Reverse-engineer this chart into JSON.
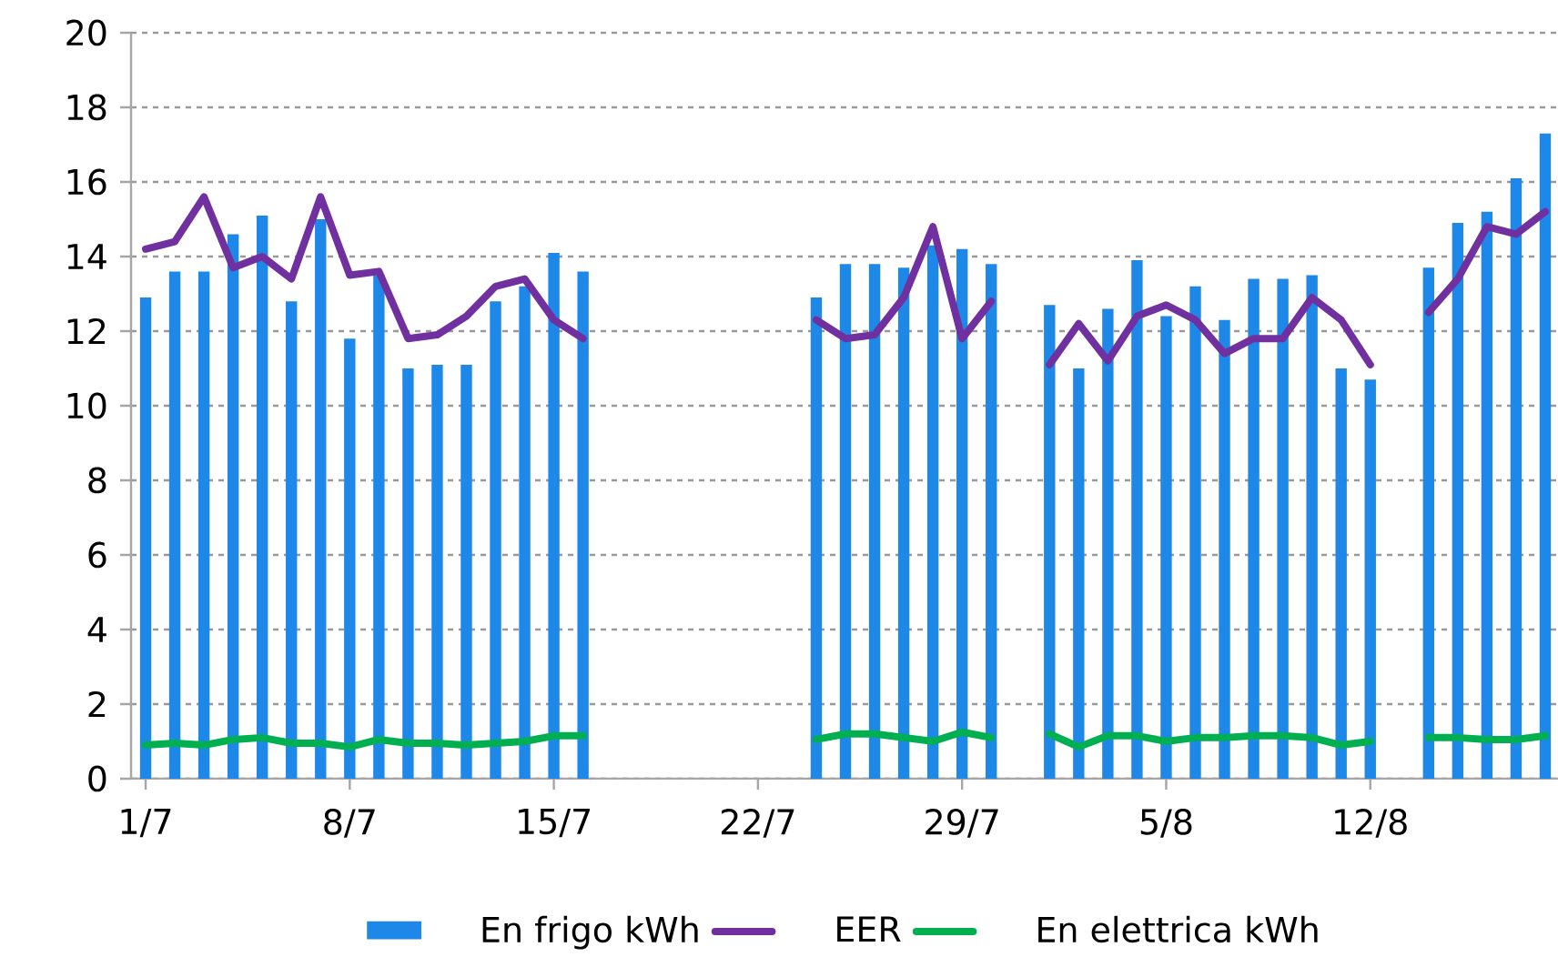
{
  "chart_data": {
    "type": "bar",
    "categories": [
      "1/7",
      null,
      null,
      null,
      null,
      null,
      null,
      "8/7",
      null,
      null,
      null,
      null,
      null,
      null,
      "15/7",
      null,
      null,
      null,
      null,
      null,
      null,
      "22/7",
      null,
      null,
      null,
      null,
      null,
      null,
      "29/7",
      null,
      null,
      null,
      null,
      null,
      null,
      "5/8",
      null,
      null,
      null,
      null,
      null,
      null,
      "12/8",
      null,
      null,
      null,
      null,
      null,
      null
    ],
    "series": [
      {
        "name": "En frigo kWh",
        "color": "#1e88e8",
        "values": [
          12.9,
          13.6,
          13.6,
          14.6,
          15.1,
          12.8,
          15.0,
          11.8,
          13.5,
          11.0,
          11.1,
          11.1,
          12.8,
          13.2,
          14.1,
          13.6,
          null,
          null,
          null,
          null,
          null,
          null,
          null,
          12.9,
          13.8,
          13.8,
          13.7,
          14.3,
          14.2,
          13.8,
          null,
          12.7,
          11.0,
          12.6,
          13.9,
          12.4,
          13.2,
          12.3,
          13.4,
          13.4,
          13.5,
          11.0,
          10.7,
          null,
          13.7,
          14.9,
          15.2,
          16.1,
          17.3
        ]
      },
      {
        "name": "EER",
        "type": "line",
        "color": "#7030a0",
        "values": [
          14.2,
          14.4,
          15.6,
          13.7,
          14.0,
          13.4,
          15.6,
          13.5,
          13.6,
          11.8,
          11.9,
          12.4,
          13.2,
          13.4,
          12.3,
          11.8,
          null,
          null,
          null,
          null,
          null,
          null,
          null,
          12.3,
          11.8,
          11.9,
          12.9,
          14.8,
          11.8,
          12.8,
          null,
          11.1,
          12.2,
          11.2,
          12.4,
          12.7,
          12.3,
          11.4,
          11.8,
          11.8,
          12.9,
          12.3,
          11.1,
          null,
          12.5,
          13.4,
          14.8,
          14.6,
          15.2
        ]
      },
      {
        "name": "En elettrica kWh",
        "type": "line",
        "color": "#00b050",
        "values": [
          0.9,
          0.95,
          0.9,
          1.05,
          1.1,
          0.95,
          0.95,
          0.85,
          1.05,
          0.95,
          0.95,
          0.9,
          0.95,
          1.0,
          1.15,
          1.15,
          null,
          null,
          null,
          null,
          null,
          null,
          null,
          1.05,
          1.2,
          1.2,
          1.1,
          1.0,
          1.25,
          1.1,
          null,
          1.2,
          0.85,
          1.15,
          1.15,
          1.0,
          1.1,
          1.1,
          1.15,
          1.15,
          1.1,
          0.9,
          1.0,
          null,
          1.1,
          1.1,
          1.05,
          1.05,
          1.15
        ]
      }
    ],
    "ylim": [
      0,
      20
    ],
    "yticks": [
      0,
      2,
      4,
      6,
      8,
      10,
      12,
      14,
      16,
      18,
      20
    ],
    "grid": "y",
    "legend": "bottom",
    "line_style": "solid",
    "marker": "none"
  }
}
